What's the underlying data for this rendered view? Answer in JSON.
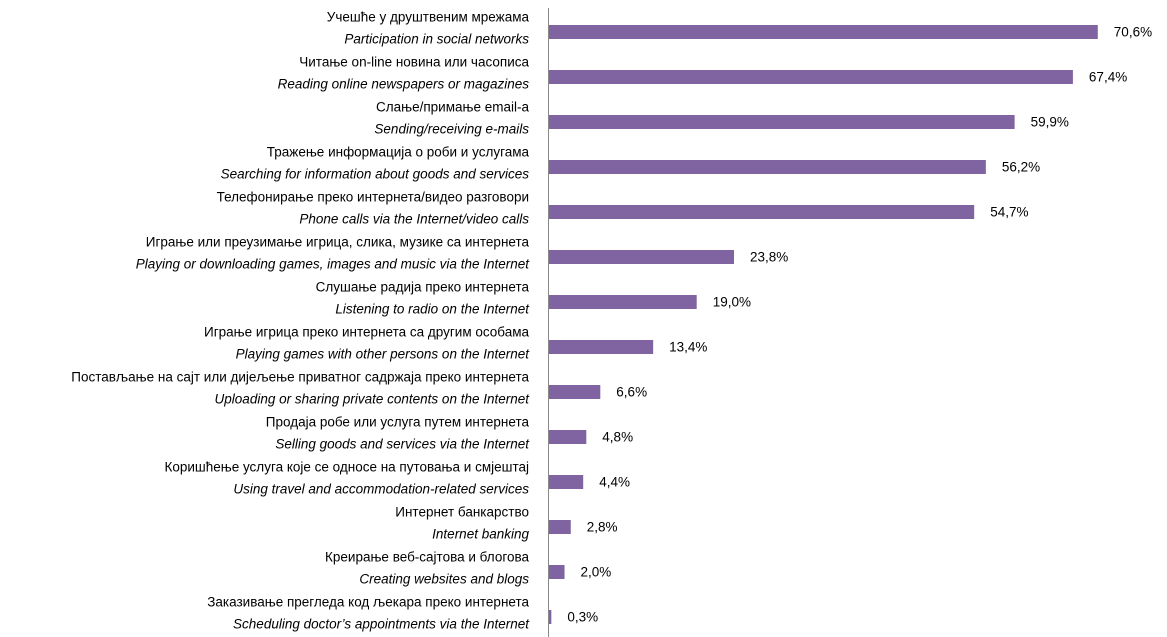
{
  "chart_data": {
    "type": "barh",
    "categories": [
      "Учешће у друштвеним мрежама",
      "Читање on-line новина или часописа",
      "Слање/примање email-a",
      "Тражење информација о роби и услугама",
      "Телефонирање преко интернета/видео разговори",
      "Играње или преузимање игрица, слика, музике са интернета",
      "Слушање радија преко интернета",
      "Играње игрица преко интернета са другим особама",
      "Постављање на сајт или дијељење приватног садржаја преко интернета",
      "Продаја робе или услуга путем интернета",
      "Коришћење услуга које се односе на путовања и смјештај",
      "Интернет банкарство",
      "Креирање веб-сајтова и блогова",
      "Заказивање прегледа код љекара преко интернета"
    ],
    "categories_en": [
      "Participation in social networks",
      "Reading online newspapers or magazines",
      "Sending/receiving e-mails",
      "Searching for information about goods and services",
      "Phone calls via the Internet/video calls",
      "Playing or downloading games, images and music via the Internet",
      "Listening to radio on the Internet",
      "Playing games with other persons on the Internet",
      "Uploading or sharing private contents on the Internet",
      "Selling goods and services via the Internet",
      "Using travel and accommodation-related services",
      "Internet banking",
      "Creating websites and blogs",
      "Scheduling doctor’s appointments via the Internet"
    ],
    "values": [
      70.6,
      67.4,
      59.9,
      56.2,
      54.7,
      23.8,
      19.0,
      13.4,
      6.6,
      4.8,
      4.4,
      2.8,
      2.0,
      0.3
    ],
    "value_labels": [
      "70,6%",
      "67,4%",
      "59,9%",
      "56,2%",
      "54,7%",
      "23,8%",
      "19,0%",
      "13,4%",
      "6,6%",
      "4,8%",
      "4,4%",
      "2,8%",
      "2,0%",
      "0,3%"
    ],
    "color": "#8064a2",
    "xlim": [
      0,
      75
    ]
  }
}
